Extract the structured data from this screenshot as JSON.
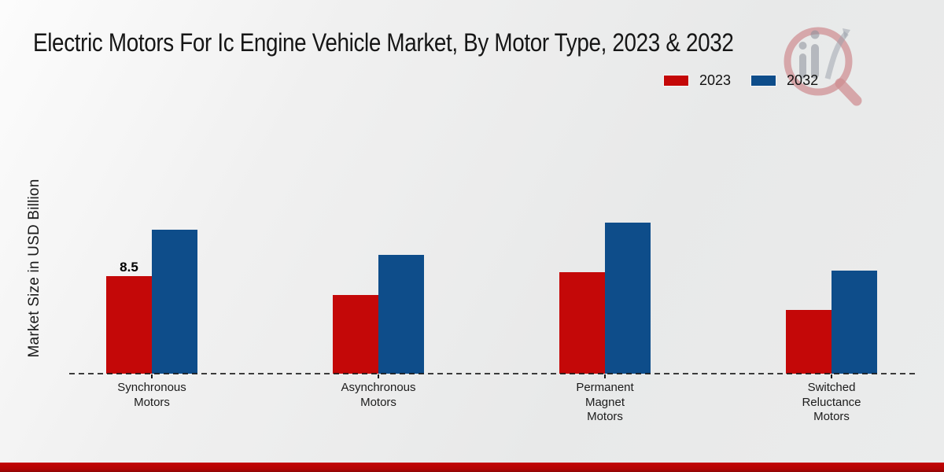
{
  "title": "Electric Motors For Ic Engine Vehicle Market, By Motor Type, 2023 & 2032",
  "ylabel": "Market Size in USD Billion",
  "legend": {
    "position": "top-right",
    "items": [
      {
        "label": "2023",
        "color": "#c40808"
      },
      {
        "label": "2032",
        "color": "#0e4d8a"
      }
    ]
  },
  "colors": {
    "bar_2023": "#c40808",
    "bar_2032": "#0e4d8a",
    "footer_band": "#b20404",
    "baseline": "#1a1a1a"
  },
  "chart_data": {
    "type": "bar",
    "title": "Electric Motors For Ic Engine Vehicle Market, By Motor Type, 2023 & 2032",
    "ylabel": "Market Size in USD Billion",
    "xlabel": "",
    "categories": [
      "Synchronous Motors",
      "Asynchronous Motors",
      "Permanent Magnet Motors",
      "Switched Reluctance Motors"
    ],
    "category_label_lines": [
      [
        "Synchronous",
        "Motors"
      ],
      [
        "Asynchronous",
        "Motors"
      ],
      [
        "Permanent",
        "Magnet",
        "Motors"
      ],
      [
        "Switched",
        "Reluctance",
        "Motors"
      ]
    ],
    "series": [
      {
        "name": "2023",
        "color": "#c40808",
        "values": [
          8.5,
          6.9,
          8.9,
          5.6
        ]
      },
      {
        "name": "2032",
        "color": "#0e4d8a",
        "values": [
          12.6,
          10.4,
          13.2,
          9.0
        ]
      }
    ],
    "data_labels": [
      {
        "series_index": 0,
        "category_index": 0,
        "text": "8.5"
      }
    ],
    "ylim": [
      0,
      14
    ],
    "grid": false,
    "baseline_style": "dashed",
    "legend_position": "top-right"
  }
}
